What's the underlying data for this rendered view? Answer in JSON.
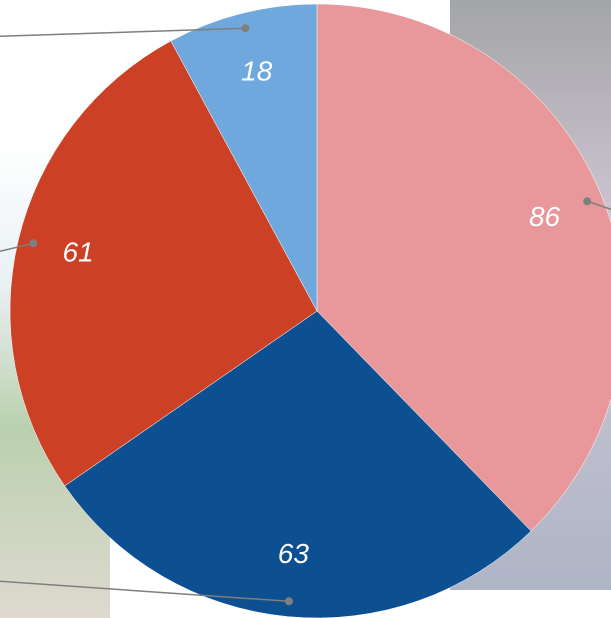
{
  "chart_data": {
    "type": "pie",
    "categories": [
      null,
      null,
      null,
      null
    ],
    "values": [
      86,
      63,
      61,
      18
    ],
    "colors": [
      "#e8979a",
      "#0d5091",
      "#cc4125",
      "#6fa8dc"
    ]
  }
}
